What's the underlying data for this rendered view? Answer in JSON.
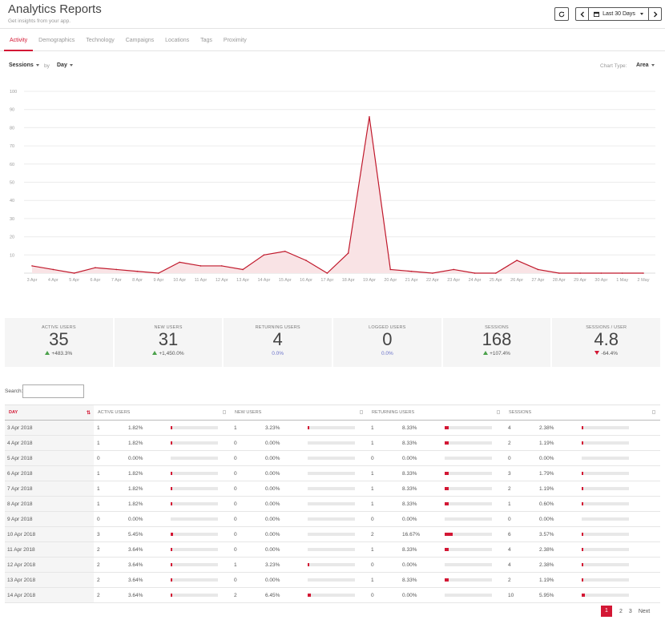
{
  "header": {
    "title": "Analytics Reports",
    "subtitle": "Get insights from your app.",
    "date_range": "Last 30 Days"
  },
  "tabs": [
    {
      "label": "Activity",
      "active": true
    },
    {
      "label": "Demographics"
    },
    {
      "label": "Technology"
    },
    {
      "label": "Campaigns"
    },
    {
      "label": "Locations"
    },
    {
      "label": "Tags"
    },
    {
      "label": "Proximity"
    }
  ],
  "controls": {
    "metric": "Sessions",
    "by_label": "by",
    "granularity": "Day",
    "chart_type_label": "Chart Type:",
    "chart_type": "Area"
  },
  "chart_data": {
    "type": "area",
    "color": "#c0182b",
    "fill": "#f9e3e5",
    "ylim": [
      0,
      100
    ],
    "yticks": [
      10,
      20,
      30,
      40,
      50,
      60,
      70,
      80,
      90,
      100
    ],
    "grid": true,
    "x": [
      "3 Apr",
      "4 Apr",
      "5 Apr",
      "6 Apr",
      "7 Apr",
      "8 Apr",
      "9 Apr",
      "10 Apr",
      "11 Apr",
      "12 Apr",
      "13 Apr",
      "14 Apr",
      "15 Apr",
      "16 Apr",
      "17 Apr",
      "18 Apr",
      "19 Apr",
      "20 Apr",
      "21 Apr",
      "22 Apr",
      "23 Apr",
      "24 Apr",
      "25 Apr",
      "26 Apr",
      "27 Apr",
      "28 Apr",
      "29 Apr",
      "30 Apr",
      "1 May",
      "2 May"
    ],
    "values": [
      4,
      2,
      0,
      3,
      2,
      1,
      0,
      6,
      4,
      4,
      2,
      10,
      12,
      7,
      0,
      11,
      86,
      2,
      1,
      0,
      2,
      0,
      0,
      7,
      2,
      0,
      0,
      0,
      0,
      0
    ]
  },
  "stats": [
    {
      "label": "ACTIVE USERS",
      "value": "35",
      "delta": "+483.3%",
      "trend": "up"
    },
    {
      "label": "NEW USERS",
      "value": "31",
      "delta": "+1,450.0%",
      "trend": "up"
    },
    {
      "label": "RETURNING USERS",
      "value": "4",
      "delta": "0.0%",
      "trend": "neutral"
    },
    {
      "label": "LOGGED USERS",
      "value": "0",
      "delta": "0.0%",
      "trend": "neutral"
    },
    {
      "label": "SESSIONS",
      "value": "168",
      "delta": "+107.4%",
      "trend": "up"
    },
    {
      "label": "SESSIONS / USER",
      "value": "4.8",
      "delta": "-64.4%",
      "trend": "down"
    }
  ],
  "search": {
    "label": "Search:",
    "value": ""
  },
  "table": {
    "columns": [
      "DAY",
      "ACTIVE USERS",
      "NEW USERS",
      "RETURNING USERS",
      "SESSIONS"
    ],
    "rows": [
      {
        "day": "3 Apr 2018",
        "cells": [
          [
            "1",
            "1.82%"
          ],
          [
            "1",
            "3.23%"
          ],
          [
            "1",
            "8.33%"
          ],
          [
            "4",
            "2.38%"
          ]
        ]
      },
      {
        "day": "4 Apr 2018",
        "cells": [
          [
            "1",
            "1.82%"
          ],
          [
            "0",
            "0.00%"
          ],
          [
            "1",
            "8.33%"
          ],
          [
            "2",
            "1.19%"
          ]
        ]
      },
      {
        "day": "5 Apr 2018",
        "cells": [
          [
            "0",
            "0.00%"
          ],
          [
            "0",
            "0.00%"
          ],
          [
            "0",
            "0.00%"
          ],
          [
            "0",
            "0.00%"
          ]
        ]
      },
      {
        "day": "6 Apr 2018",
        "cells": [
          [
            "1",
            "1.82%"
          ],
          [
            "0",
            "0.00%"
          ],
          [
            "1",
            "8.33%"
          ],
          [
            "3",
            "1.79%"
          ]
        ]
      },
      {
        "day": "7 Apr 2018",
        "cells": [
          [
            "1",
            "1.82%"
          ],
          [
            "0",
            "0.00%"
          ],
          [
            "1",
            "8.33%"
          ],
          [
            "2",
            "1.19%"
          ]
        ]
      },
      {
        "day": "8 Apr 2018",
        "cells": [
          [
            "1",
            "1.82%"
          ],
          [
            "0",
            "0.00%"
          ],
          [
            "1",
            "8.33%"
          ],
          [
            "1",
            "0.60%"
          ]
        ]
      },
      {
        "day": "9 Apr 2018",
        "cells": [
          [
            "0",
            "0.00%"
          ],
          [
            "0",
            "0.00%"
          ],
          [
            "0",
            "0.00%"
          ],
          [
            "0",
            "0.00%"
          ]
        ]
      },
      {
        "day": "10 Apr 2018",
        "cells": [
          [
            "3",
            "5.45%"
          ],
          [
            "0",
            "0.00%"
          ],
          [
            "2",
            "16.67%"
          ],
          [
            "6",
            "3.57%"
          ]
        ]
      },
      {
        "day": "11 Apr 2018",
        "cells": [
          [
            "2",
            "3.64%"
          ],
          [
            "0",
            "0.00%"
          ],
          [
            "1",
            "8.33%"
          ],
          [
            "4",
            "2.38%"
          ]
        ]
      },
      {
        "day": "12 Apr 2018",
        "cells": [
          [
            "2",
            "3.64%"
          ],
          [
            "1",
            "3.23%"
          ],
          [
            "0",
            "0.00%"
          ],
          [
            "4",
            "2.38%"
          ]
        ]
      },
      {
        "day": "13 Apr 2018",
        "cells": [
          [
            "2",
            "3.64%"
          ],
          [
            "0",
            "0.00%"
          ],
          [
            "1",
            "8.33%"
          ],
          [
            "2",
            "1.19%"
          ]
        ]
      },
      {
        "day": "14 Apr 2018",
        "cells": [
          [
            "2",
            "3.64%"
          ],
          [
            "2",
            "6.45%"
          ],
          [
            "0",
            "0.00%"
          ],
          [
            "10",
            "5.95%"
          ]
        ]
      }
    ]
  },
  "pagination": {
    "pages": [
      "1",
      "2",
      "3"
    ],
    "current": "1",
    "next": "Next"
  }
}
